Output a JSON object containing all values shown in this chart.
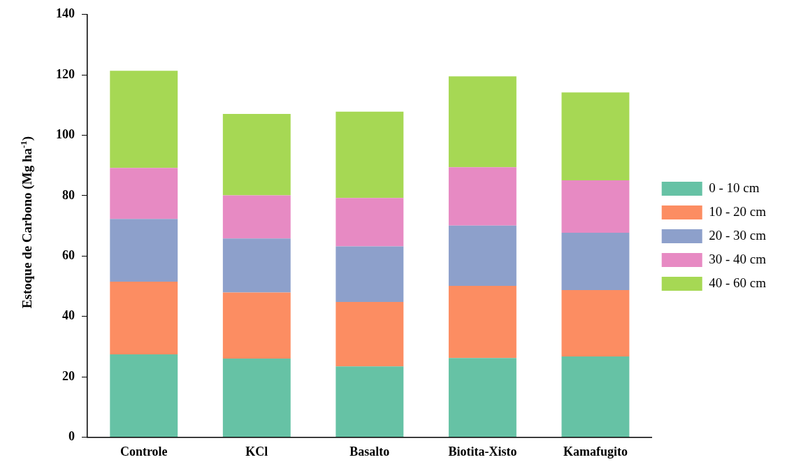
{
  "chart_data": {
    "type": "bar",
    "stacked": true,
    "ylabel": "Estoque de Carbono (Mg ha$^{-1}$)",
    "categories": [
      "Controle",
      "KCl",
      "Basalto",
      "Biotita-Xisto",
      "Kamafugito"
    ],
    "series": [
      {
        "name": "0 - 10 cm",
        "color": "#66c2a5",
        "values": [
          27.4,
          26.0,
          23.4,
          26.2,
          26.7
        ]
      },
      {
        "name": "10 - 20 cm",
        "color": "#fc8d62",
        "values": [
          24.1,
          21.9,
          21.4,
          23.9,
          22.0
        ]
      },
      {
        "name": "20 - 30 cm",
        "color": "#8da0cb",
        "values": [
          20.8,
          17.9,
          18.4,
          20.0,
          19.0
        ]
      },
      {
        "name": "30 - 40 cm",
        "color": "#e78ac3",
        "values": [
          16.9,
          14.3,
          16.0,
          19.3,
          17.4
        ]
      },
      {
        "name": "40 - 60 cm",
        "color": "#a6d854",
        "values": [
          32.2,
          27.0,
          28.6,
          30.1,
          29.1
        ]
      }
    ],
    "ylim": [
      0,
      140
    ],
    "yticks": [
      0,
      20,
      40,
      60,
      80,
      100,
      120,
      140
    ],
    "grid": false,
    "legend": "right"
  }
}
